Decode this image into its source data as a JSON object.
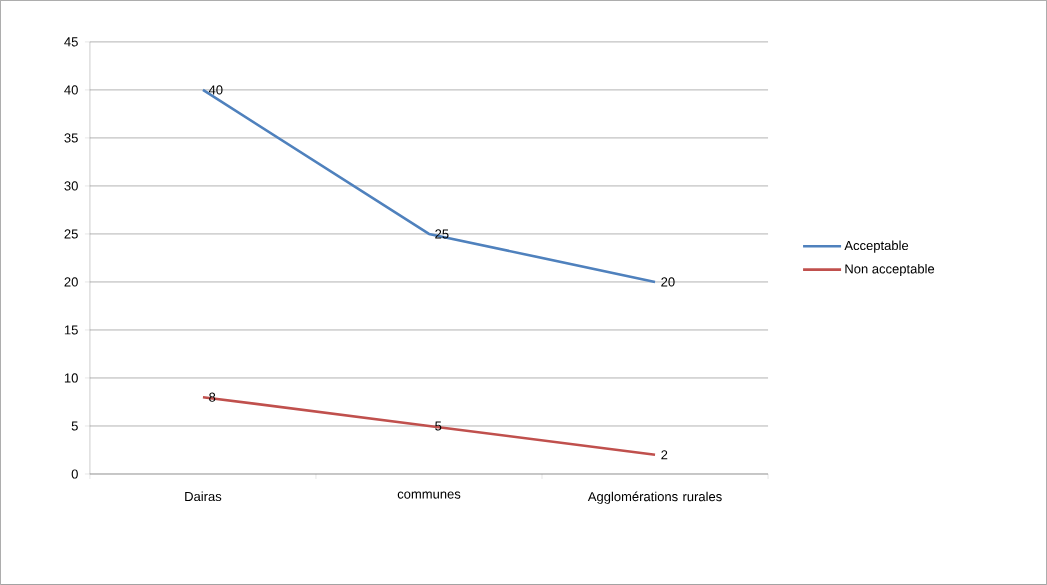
{
  "chart_data": {
    "type": "line",
    "categories": [
      "Dairas",
      "communes",
      "Agglomérations rurales"
    ],
    "series": [
      {
        "name": "Acceptable",
        "color": "#4f81bd",
        "values": [
          40,
          25,
          20
        ]
      },
      {
        "name": "Non acceptable",
        "color": "#c0504d",
        "values": [
          8,
          5,
          2
        ]
      }
    ],
    "ylim": [
      0,
      45
    ],
    "yticks": [
      0,
      5,
      10,
      15,
      20,
      25,
      30,
      35,
      40,
      45
    ],
    "grid": "y",
    "legend": "right",
    "data_labels": true,
    "marker": "none",
    "line_style": "solid"
  }
}
